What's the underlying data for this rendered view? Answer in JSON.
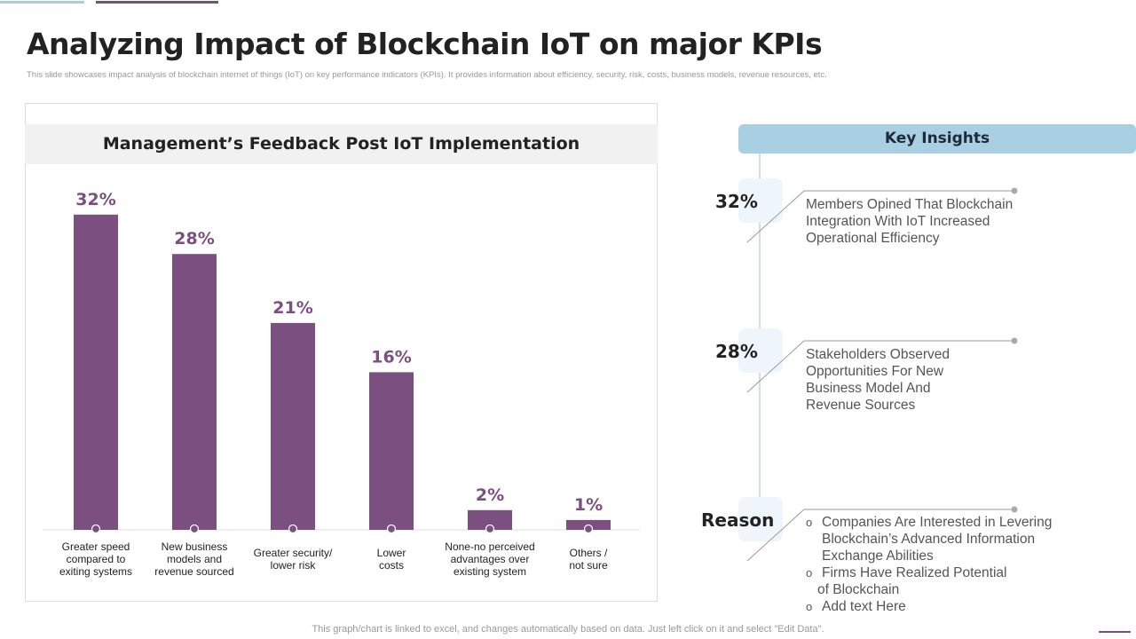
{
  "title": "Analyzing Impact of Blockchain IoT on major KPIs",
  "subtitle": "This slide showcases impact analysis of blockchain internet of things (IoT) on key performance indicators (KPIs). It provides information about efficiency, security, risk, costs, business models, revenue resources, etc.",
  "footer": "This graph/chart is linked to excel, and changes automatically based on data. Just left click on it and select \"Edit Data\".",
  "colors": {
    "bar": "#7b4f7f",
    "header": "#a9cfe3"
  },
  "chart_data": {
    "type": "bar",
    "title": "Management’s Feedback Post IoT Implementation",
    "categories": [
      "Greater speed compared to exiting systems",
      "New business models and revenue sourced",
      "Greater security/ lower risk",
      "Lower costs",
      "None-no perceived advantages over existing system",
      "Others / not sure"
    ],
    "category_lines": [
      [
        "Greater speed",
        "compared to",
        "exiting systems"
      ],
      [
        "New business",
        "models and",
        "revenue sourced"
      ],
      [
        "Greater security/",
        "lower risk"
      ],
      [
        "Lower",
        "costs"
      ],
      [
        "None-no perceived",
        "advantages over",
        "existing system"
      ],
      [
        "Others /",
        "not sure"
      ]
    ],
    "values": [
      32,
      28,
      21,
      16,
      2,
      1
    ],
    "labels": [
      "32%",
      "28%",
      "21%",
      "16%",
      "2%",
      "1%"
    ],
    "ylim": [
      0,
      35
    ]
  },
  "insights": {
    "header": "Key Insights",
    "items": [
      {
        "pct": "32%",
        "lines": [
          "Members Opined That Blockchain",
          "Integration With IoT Increased",
          "Operational Efficiency"
        ]
      },
      {
        "pct": "28%",
        "lines": [
          "Stakeholders Observed",
          "Opportunities For New",
          "Business Model And",
          "Revenue Sources"
        ]
      }
    ],
    "reason": {
      "label": "Reason",
      "bullets": [
        "Companies Are Interested  in Levering",
        "Blockchain’s Advanced Information",
        "Exchange Abilities",
        "Firms Have Realized Potential",
        "of Blockchain",
        "Add text Here"
      ]
    }
  }
}
